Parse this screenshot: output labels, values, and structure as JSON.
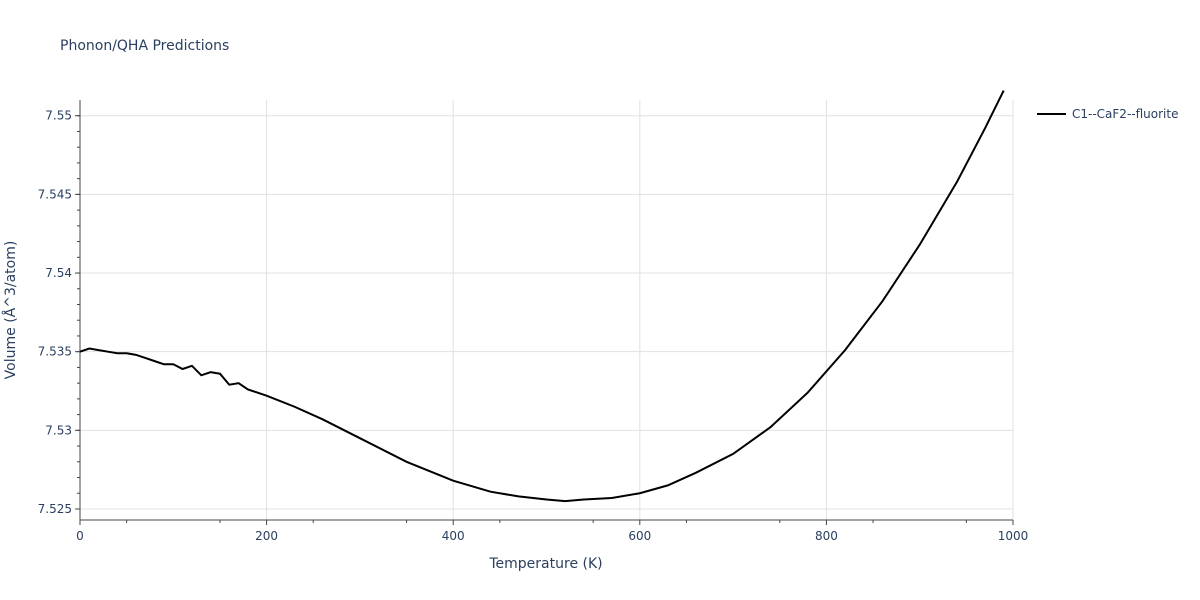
{
  "chart_data": {
    "type": "line",
    "title": "Phonon/QHA Predictions",
    "xlabel": "Temperature (K)",
    "ylabel": "Volume (Å^3/atom)",
    "xlim": [
      0,
      1000
    ],
    "ylim": [
      7.5243,
      7.551
    ],
    "x_ticks": [
      0,
      200,
      400,
      600,
      800,
      1000
    ],
    "y_ticks": [
      7.525,
      7.53,
      7.535,
      7.54,
      7.545,
      7.55
    ],
    "grid": true,
    "legend_position": "right",
    "colors": {
      "line": "#000000",
      "grid": "#e1e1e1",
      "text": "#2a3f5f"
    },
    "series": [
      {
        "name": "C1--CaF2--fluorite",
        "x": [
          0,
          10,
          20,
          30,
          40,
          50,
          60,
          70,
          80,
          90,
          100,
          110,
          120,
          130,
          140,
          150,
          160,
          170,
          180,
          200,
          230,
          260,
          300,
          350,
          400,
          440,
          470,
          500,
          520,
          540,
          570,
          600,
          630,
          660,
          700,
          740,
          780,
          820,
          860,
          900,
          940,
          970,
          990
        ],
        "y": [
          7.535,
          7.5352,
          7.5351,
          7.535,
          7.5349,
          7.5349,
          7.5348,
          7.5346,
          7.5344,
          7.5342,
          7.5342,
          7.5339,
          7.5341,
          7.5335,
          7.5337,
          7.5336,
          7.5329,
          7.533,
          7.5326,
          7.5322,
          7.5315,
          7.5307,
          7.5295,
          7.528,
          7.5268,
          7.5261,
          7.5258,
          7.5256,
          7.5255,
          7.5256,
          7.5257,
          7.526,
          7.5265,
          7.5273,
          7.5285,
          7.5302,
          7.5324,
          7.5351,
          7.5382,
          7.5418,
          7.5458,
          7.5492,
          7.5516
        ]
      }
    ]
  }
}
